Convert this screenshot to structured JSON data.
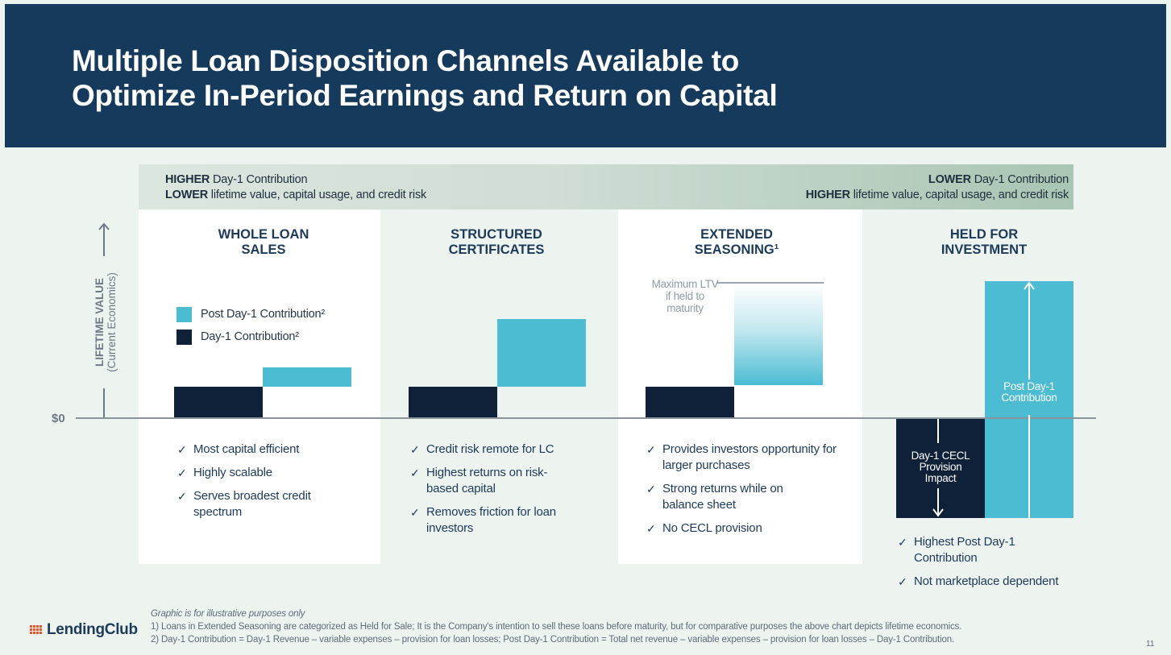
{
  "title": "Multiple Loan Disposition Channels Available to\nOptimize In-Period Earnings and Return on Capital",
  "band": {
    "left_line1_bold": "HIGHER",
    "left_line1_rest": " Day-1 Contribution",
    "left_line2_bold": "LOWER",
    "left_line2_rest": " lifetime value, capital usage, and credit risk",
    "right_line1_bold": "LOWER",
    "right_line1_rest": " Day-1 Contribution",
    "right_line2_bold": "HIGHER",
    "right_line2_rest": " lifetime value, capital usage, and credit risk"
  },
  "axis": {
    "label_main": "LIFETIME VALUE",
    "label_sub": "(Current Economics)",
    "zero_label": "$0"
  },
  "legend": {
    "post": "Post Day-1 Contribution²",
    "day1": "Day-1 Contribution²"
  },
  "columns": [
    {
      "heading": "WHOLE LOAN\nSALES",
      "bullets": [
        "Most capital efficient",
        "Highly scalable",
        "Serves broadest credit spectrum"
      ]
    },
    {
      "heading": "STRUCTURED\nCERTIFICATES",
      "bullets": [
        "Credit risk remote for LC",
        "Highest returns on risk-based capital",
        "Removes friction for loan investors"
      ]
    },
    {
      "heading": "EXTENDED\nSEASONING¹",
      "max_label": "Maximum LTV if held to maturity",
      "bullets": [
        "Provides investors opportunity for larger purchases",
        "Strong returns while on balance sheet",
        "No CECL provision"
      ]
    },
    {
      "heading": "HELD FOR\nINVESTMENT",
      "cecl_label": "Day-1 CECL Provision Impact",
      "post_label": "Post Day-1 Contribution",
      "bullets": [
        "Highest Post Day-1 Contribution",
        "Not marketplace dependent"
      ]
    }
  ],
  "colors": {
    "header_bg": "#163a5c",
    "dark_bar": "#0f2138",
    "light_bar": "#4bbcd2",
    "background": "#edf3ef"
  },
  "footnotes": {
    "illustrative": "Graphic is for illustrative purposes only",
    "note1": "1)  Loans in Extended Seasoning are categorized as Held for Sale; It is the Company's intention to sell these loans before maturity, but for comparative purposes the above chart depicts lifetime economics.",
    "note2": "2)  Day-1 Contribution = Day-1 Revenue – variable expenses – provision for loan losses; Post Day-1 Contribution = Total net revenue – variable expenses – provision for loan losses – Day-1 Contribution."
  },
  "logo": "LendingClub",
  "page_number": "11"
}
